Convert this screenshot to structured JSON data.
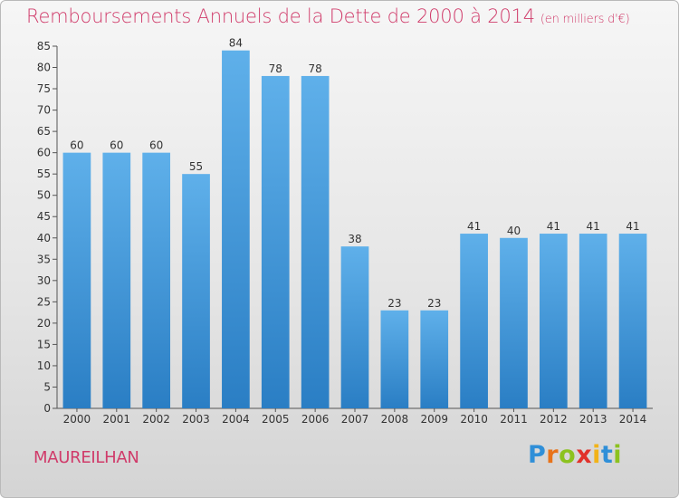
{
  "chart_data": {
    "type": "bar",
    "title": "Remboursements Annuels de la Dette de 2000 à 2014",
    "subtitle": "(en milliers d'€)",
    "categories": [
      "2000",
      "2001",
      "2002",
      "2003",
      "2004",
      "2005",
      "2006",
      "2007",
      "2008",
      "2009",
      "2010",
      "2011",
      "2012",
      "2013",
      "2014"
    ],
    "values": [
      60,
      60,
      60,
      55,
      84,
      78,
      78,
      38,
      23,
      23,
      41,
      40,
      41,
      41,
      41
    ],
    "ylim": [
      0,
      85
    ],
    "yticks": [
      0,
      5,
      10,
      15,
      20,
      25,
      30,
      35,
      40,
      45,
      50,
      55,
      60,
      65,
      70,
      75,
      80,
      85
    ],
    "grid": false,
    "legend": "none",
    "bar_color_top": "#5fb0ea",
    "bar_color_bottom": "#2a7ec4",
    "title_color": "#d03b6a"
  },
  "footer": {
    "town": "MAUREILHAN"
  },
  "logo": {
    "letters": [
      "P",
      "r",
      "o",
      "x",
      "i",
      "t",
      "i"
    ],
    "colors": [
      "#2f8fd8",
      "#e8731a",
      "#8cc21f",
      "#e1322b",
      "#f2b318",
      "#2f8fd8",
      "#8cc21f"
    ]
  }
}
